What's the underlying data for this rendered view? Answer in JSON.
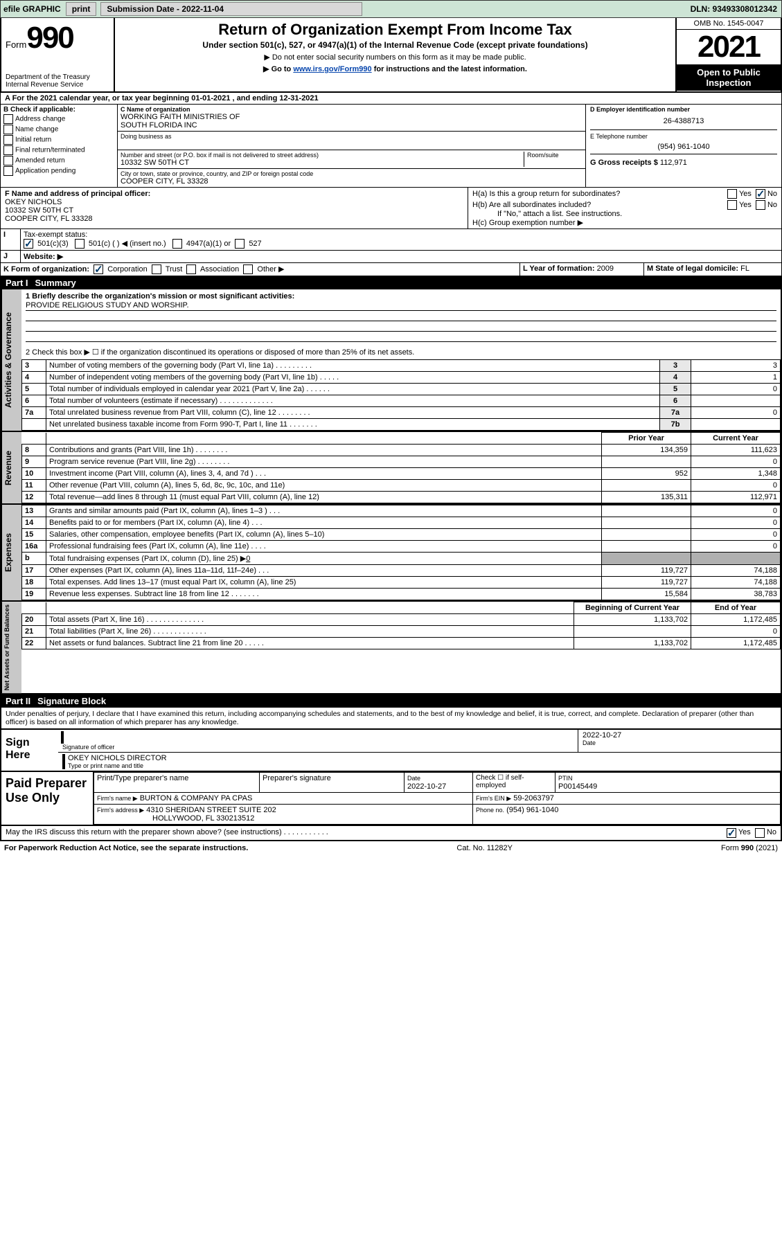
{
  "topbar": {
    "efile_label": "efile GRAPHIC",
    "print_btn": "print",
    "sub_label": "Submission Date - 2022-11-04",
    "dln": "DLN: 93493308012342"
  },
  "header": {
    "form_word": "Form",
    "form_num": "990",
    "dept": "Department of the Treasury",
    "irs": "Internal Revenue Service",
    "title": "Return of Organization Exempt From Income Tax",
    "subtitle": "Under section 501(c), 527, or 4947(a)(1) of the Internal Revenue Code (except private foundations)",
    "note1": "▶ Do not enter social security numbers on this form as it may be made public.",
    "note2_pre": "▶ Go to ",
    "note2_link": "www.irs.gov/Form990",
    "note2_post": " for instructions and the latest information.",
    "omb": "OMB No. 1545-0047",
    "year": "2021",
    "open": "Open to Public Inspection"
  },
  "sectionA": {
    "prefix": "A For the 2021 calendar year, or tax year beginning ",
    "begin": "01-01-2021",
    "mid": " , and ending ",
    "end": "12-31-2021"
  },
  "blockB": {
    "title": "B Check if applicable:",
    "opts": [
      "Address change",
      "Name change",
      "Initial return",
      "Final return/terminated",
      "Amended return",
      "Application pending"
    ]
  },
  "blockC": {
    "name_label": "C Name of organization",
    "name1": "WORKING FAITH MINISTRIES OF",
    "name2": "SOUTH FLORIDA INC",
    "dba_label": "Doing business as",
    "dba": "",
    "street_label": "Number and street (or P.O. box if mail is not delivered to street address)",
    "room_label": "Room/suite",
    "street": "10332 SW 50TH CT",
    "city_label": "City or town, state or province, country, and ZIP or foreign postal code",
    "city": "COOPER CITY, FL  33328"
  },
  "blockD": {
    "label": "D Employer identification number",
    "ein": "26-4388713"
  },
  "blockE": {
    "label": "E Telephone number",
    "phone": "(954) 961-1040"
  },
  "blockG": {
    "label": "G Gross receipts $",
    "val": "112,971"
  },
  "blockF": {
    "label": "F Name and address of principal officer:",
    "line1": "OKEY NICHOLS",
    "line2": "10332 SW 50TH CT",
    "line3": "COOPER CITY, FL  33328"
  },
  "blockH": {
    "a": "H(a)  Is this a group return for subordinates?",
    "b": "H(b)  Are all subordinates included?",
    "bnote": "If \"No,\" attach a list. See instructions.",
    "c": "H(c)  Group exemption number ▶"
  },
  "taxexempt": {
    "label": "Tax-exempt status:",
    "o1": "501(c)(3)",
    "o2": "501(c) (   ) ◀ (insert no.)",
    "o3": "4947(a)(1) or",
    "o4": "527"
  },
  "website": {
    "label": "Website: ▶",
    "val": ""
  },
  "formorgK": "K Form of organization:",
  "formorg_opts": [
    "Corporation",
    "Trust",
    "Association",
    "Other ▶"
  ],
  "yearL": {
    "label": "L Year of formation:",
    "val": "2009"
  },
  "stateM": {
    "label": "M State of legal domicile:",
    "val": "FL"
  },
  "part1": {
    "bar": "Part I",
    "bar_title": "Summary",
    "line1_label": "1  Briefly describe the organization's mission or most significant activities:",
    "mission": "PROVIDE RELIGIOUS STUDY AND WORSHIP.",
    "line2": "2  Check this box ▶ ☐  if the organization discontinued its operations or disposed of more than 25% of its net assets.",
    "lines_gov": [
      {
        "n": "3",
        "t": "Number of voting members of the governing body (Part VI, line 1a)  .    .    .    .    .    .    .    .    .",
        "box": "3",
        "v": "3"
      },
      {
        "n": "4",
        "t": "Number of independent voting members of the governing body (Part VI, line 1b)  .    .    .    .    .",
        "box": "4",
        "v": "1"
      },
      {
        "n": "5",
        "t": "Total number of individuals employed in calendar year 2021 (Part V, line 2a)  .    .    .    .    .    .",
        "box": "5",
        "v": "0"
      },
      {
        "n": "6",
        "t": "Total number of volunteers (estimate if necessary)  .    .    .    .    .    .    .    .    .    .    .    .    .",
        "box": "6",
        "v": ""
      },
      {
        "n": "7a",
        "t": "Total unrelated business revenue from Part VIII, column (C), line 12  .    .    .    .    .    .    .    .",
        "box": "7a",
        "v": "0"
      },
      {
        "n": "",
        "t": "Net unrelated business taxable income from Form 990-T, Part I, line 11  .    .    .    .    .    .    .",
        "box": "7b",
        "v": ""
      }
    ],
    "col_prior": "Prior Year",
    "col_curr": "Current Year",
    "rev": [
      {
        "n": "8",
        "t": "Contributions and grants (Part VIII, line 1h)  .    .    .    .    .    .    .    .",
        "p": "134,359",
        "c": "111,623"
      },
      {
        "n": "9",
        "t": "Program service revenue (Part VIII, line 2g)  .    .    .    .    .    .    .    .",
        "p": "",
        "c": "0"
      },
      {
        "n": "10",
        "t": "Investment income (Part VIII, column (A), lines 3, 4, and 7d )  .    .    .",
        "p": "952",
        "c": "1,348"
      },
      {
        "n": "11",
        "t": "Other revenue (Part VIII, column (A), lines 5, 6d, 8c, 9c, 10c, and 11e)",
        "p": "",
        "c": "0"
      },
      {
        "n": "12",
        "t": "Total revenue—add lines 8 through 11 (must equal Part VIII, column (A), line 12)",
        "p": "135,311",
        "c": "112,971"
      }
    ],
    "exp": [
      {
        "n": "13",
        "t": "Grants and similar amounts paid (Part IX, column (A), lines 1–3 )  .    .    .",
        "p": "",
        "c": "0"
      },
      {
        "n": "14",
        "t": "Benefits paid to or for members (Part IX, column (A), line 4)  .    .    .",
        "p": "",
        "c": "0"
      },
      {
        "n": "15",
        "t": "Salaries, other compensation, employee benefits (Part IX, column (A), lines 5–10)",
        "p": "",
        "c": "0"
      },
      {
        "n": "16a",
        "t": "Professional fundraising fees (Part IX, column (A), line 11e)  .    .    .    .",
        "p": "",
        "c": "0"
      }
    ],
    "exp_b": {
      "n": "b",
      "t": "Total fundraising expenses (Part IX, column (D), line 25) ▶",
      "v": "0"
    },
    "exp2": [
      {
        "n": "17",
        "t": "Other expenses (Part IX, column (A), lines 11a–11d, 11f–24e)  .    .    .",
        "p": "119,727",
        "c": "74,188"
      },
      {
        "n": "18",
        "t": "Total expenses. Add lines 13–17 (must equal Part IX, column (A), line 25)",
        "p": "119,727",
        "c": "74,188"
      },
      {
        "n": "19",
        "t": "Revenue less expenses. Subtract line 18 from line 12  .    .    .    .    .    .    .",
        "p": "15,584",
        "c": "38,783"
      }
    ],
    "col_begin": "Beginning of Current Year",
    "col_end": "End of Year",
    "net": [
      {
        "n": "20",
        "t": "Total assets (Part X, line 16)  .    .    .    .    .    .    .    .    .    .    .    .    .    .",
        "p": "1,133,702",
        "c": "1,172,485"
      },
      {
        "n": "21",
        "t": "Total liabilities (Part X, line 26)  .    .    .    .    .    .    .    .    .    .    .    .    .",
        "p": "",
        "c": "0"
      },
      {
        "n": "22",
        "t": "Net assets or fund balances. Subtract line 21 from line 20  .    .    .    .    .",
        "p": "1,133,702",
        "c": "1,172,485"
      }
    ]
  },
  "part2": {
    "bar": "Part II",
    "bar_title": "Signature Block",
    "decl": "Under penalties of perjury, I declare that I have examined this return, including accompanying schedules and statements, and to the best of my knowledge and belief, it is true, correct, and complete. Declaration of preparer (other than officer) is based on all information of which preparer has any knowledge.",
    "sign_here": "Sign Here",
    "sig_officer": "Signature of officer",
    "date": "2022-10-27",
    "date_label": "Date",
    "officer_name": "OKEY NICHOLS  DIRECTOR",
    "officer_label": "Type or print name and title",
    "paid": "Paid Preparer Use Only",
    "cols": [
      "Print/Type preparer's name",
      "Preparer's signature",
      "Date",
      "",
      "PTIN"
    ],
    "prep_date": "2022-10-27",
    "check_if": "Check ☐ if self-employed",
    "ptin": "P00145449",
    "firm_name_l": "Firm's name   ▶",
    "firm_name": "BURTON & COMPANY PA CPAS",
    "firm_ein_l": "Firm's EIN ▶",
    "firm_ein": "59-2063797",
    "firm_addr_l": "Firm's address ▶",
    "firm_addr1": "4310 SHERIDAN STREET SUITE 202",
    "firm_addr2": "HOLLYWOOD, FL  330213512",
    "phone_l": "Phone no.",
    "phone": "(954) 961-1040",
    "discuss": "May the IRS discuss this return with the preparer shown above? (see instructions)  .    .    .    .    .    .    .    .    .    .    ."
  },
  "footer": {
    "left": "For Paperwork Reduction Act Notice, see the separate instructions.",
    "mid": "Cat. No. 11282Y",
    "right": "Form 990 (2021)"
  },
  "yesno": {
    "yes": "Yes",
    "no": "No"
  },
  "tabs": {
    "gov": "Activities & Governance",
    "rev": "Revenue",
    "exp": "Expenses",
    "net": "Net Assets or Fund Balances"
  }
}
